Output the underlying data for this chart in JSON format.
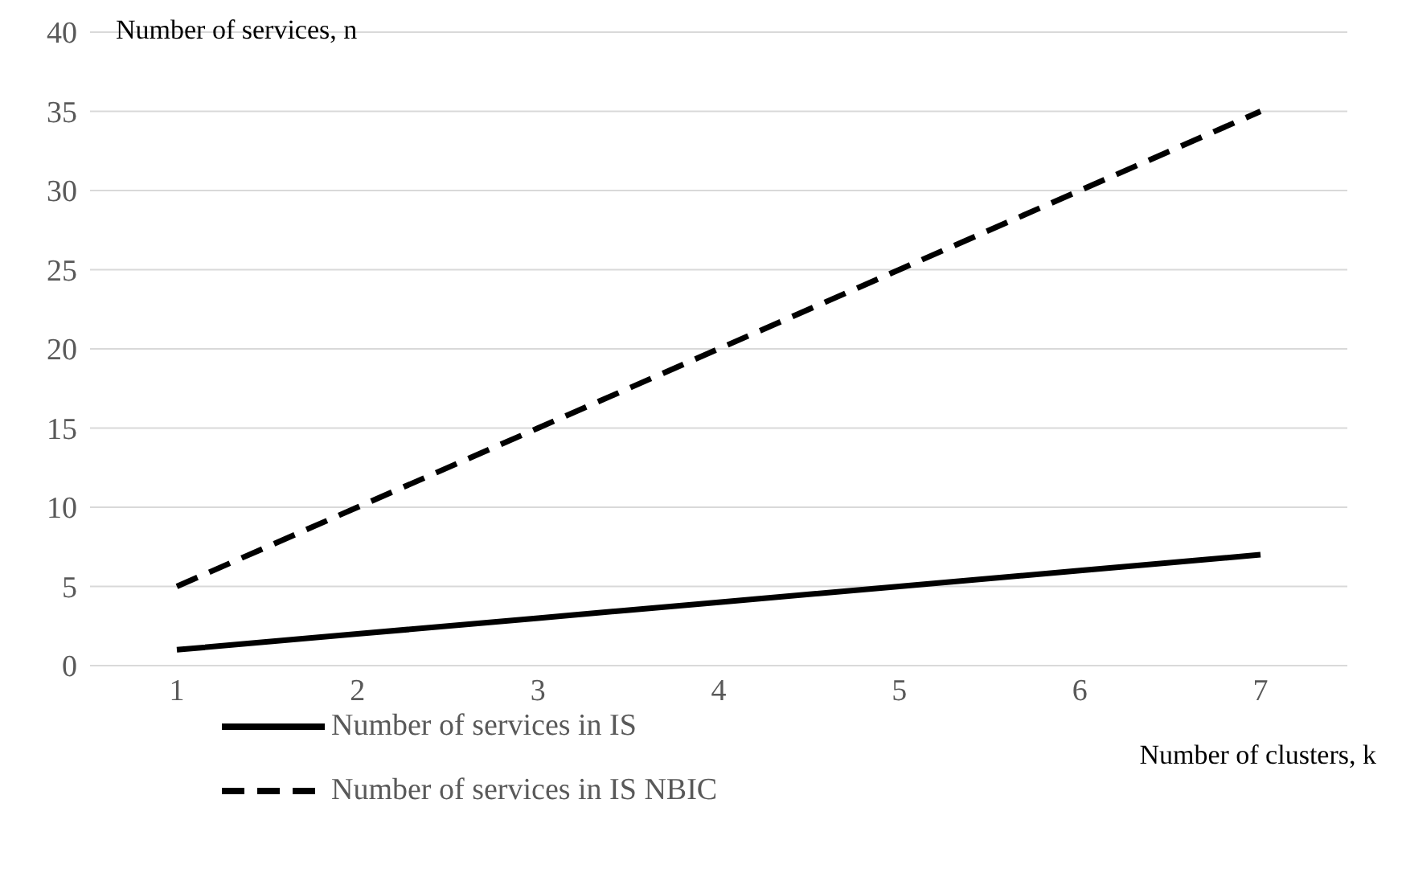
{
  "chart_data": {
    "type": "line",
    "ylabel": "Number of services, n",
    "xlabel": "Number of clusters, k",
    "categories": [
      "1",
      "2",
      "3",
      "4",
      "5",
      "6",
      "7"
    ],
    "series": [
      {
        "name": "Number of services in IS",
        "color": "#000000",
        "values": [
          1,
          2,
          3,
          4,
          5,
          6,
          7
        ],
        "line_style": "solid"
      },
      {
        "name": "Number of services in IS NBIC",
        "color": "#000000",
        "values": [
          5,
          10,
          15,
          20,
          25,
          30,
          35
        ],
        "line_style": "dashed"
      }
    ],
    "ylim": [
      0,
      40
    ],
    "yticks": [
      0,
      5,
      10,
      15,
      20,
      25,
      30,
      35,
      40
    ],
    "grid": "y",
    "legend": "bottom left",
    "marker": "none"
  }
}
